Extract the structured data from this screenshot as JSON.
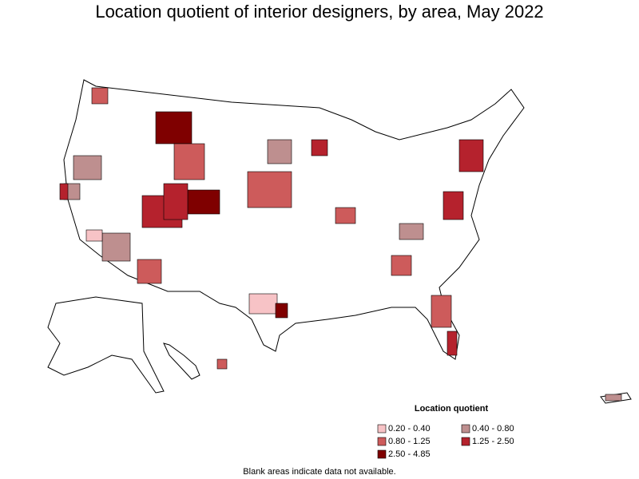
{
  "title": "Location quotient of interior designers, by area, May 2022",
  "legend": {
    "title": "Location quotient",
    "items": [
      {
        "label": "0.20 - 0.40",
        "color": "#f7c3c6"
      },
      {
        "label": "0.40 - 0.80",
        "color": "#be8f8f"
      },
      {
        "label": "0.80 - 1.25",
        "color": "#cd5b5b"
      },
      {
        "label": "1.25 - 2.50",
        "color": "#b5222d"
      },
      {
        "label": "2.50 - 4.85",
        "color": "#7f0000"
      }
    ]
  },
  "footnote": "Blank areas indicate data not available."
}
